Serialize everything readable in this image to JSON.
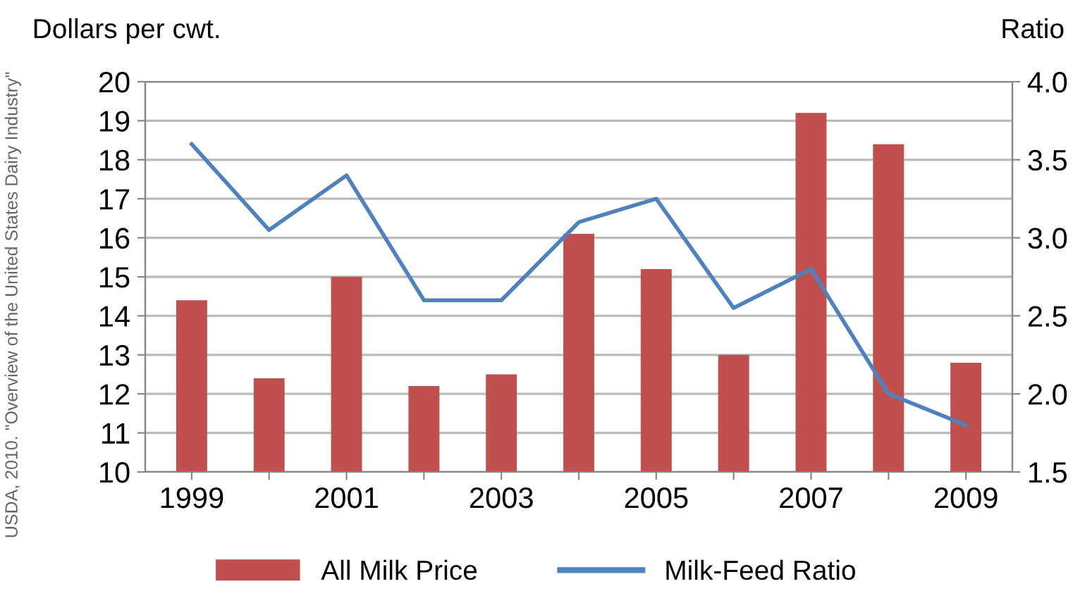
{
  "chart_data": {
    "type": "bar",
    "ylabel": "Dollars per cwt.",
    "y2label": "Ratio",
    "categories": [
      "1999",
      null,
      "2001",
      null,
      "2003",
      null,
      "2005",
      null,
      "2007",
      null,
      "2009"
    ],
    "series": [
      {
        "name": "All Milk Price",
        "color": "#c0504d",
        "values": [
          14.4,
          12.4,
          15.0,
          12.2,
          12.5,
          16.1,
          15.2,
          13.0,
          19.2,
          18.4,
          12.8
        ]
      },
      {
        "name": "Milk-Feed Ratio",
        "type": "line",
        "axis": "y2",
        "color": "#4f81bd",
        "values": [
          3.6,
          3.05,
          3.4,
          2.6,
          2.6,
          3.1,
          3.25,
          2.55,
          2.8,
          2.0,
          1.8
        ]
      }
    ],
    "ylim": [
      10,
      20
    ],
    "yticks": [
      10,
      11,
      12,
      13,
      14,
      15,
      16,
      17,
      18,
      19,
      20
    ],
    "y2lim": [
      1.5,
      4.0
    ],
    "y2ticks": [
      {
        "value": 1.5,
        "label": "1.5"
      },
      {
        "value": 2.0,
        "label": "2.0"
      },
      {
        "value": 2.5,
        "label": "2.5"
      },
      {
        "value": 3.0,
        "label": "3.0"
      },
      {
        "value": 3.5,
        "label": "3.5"
      },
      {
        "value": 4.0,
        "label": "4.0"
      }
    ],
    "grid": "y",
    "legend": "bottom",
    "marker": "none",
    "line_style": "solid",
    "annotations": [
      "USDA, 2010. \"Overview of the United States Dairy Industry\""
    ]
  }
}
